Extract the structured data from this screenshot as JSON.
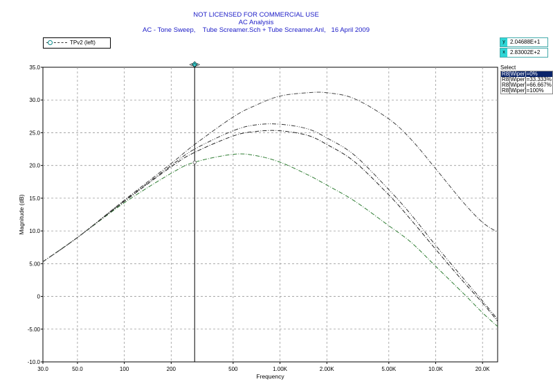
{
  "header": {
    "line1": "NOT LICENSED FOR COMMERCIAL USE",
    "line2": "AC Analysis",
    "line3": "AC - Tone Sweep,    Tube Screamer.Sch + Tube Screamer.Anl,   16 April 2009"
  },
  "legend": {
    "label": "TPv2 (left)"
  },
  "cursor": {
    "y_tag": "y",
    "y_value": "2.04688E+1",
    "x_tag": "x",
    "x_value": "2.83002E+2",
    "marker_label": "<◇>",
    "x_data": 283
  },
  "select_panel": {
    "title": "Select",
    "items": [
      "R8[Wiper]=0%",
      "R8[Wiper]=33.333%",
      "R8[Wiper]=66.667%",
      "R8[Wiper]=100%"
    ],
    "selected_index": 0
  },
  "chart_data": {
    "type": "line",
    "title": "",
    "xlabel": "Frequency",
    "ylabel": "Magnitude  (dB)",
    "x_scale": "log",
    "xlim": [
      30,
      25000
    ],
    "ylim": [
      -10,
      35
    ],
    "grid": true,
    "x_ticks": [
      30,
      50,
      100,
      200,
      500,
      1000,
      2000,
      5000,
      10000,
      20000
    ],
    "x_tick_labels": [
      "30.0",
      "50.0",
      "100",
      "200",
      "500",
      "1.00K",
      "2.00K",
      "5.00K",
      "10.0K",
      "20.0K"
    ],
    "y_ticks": [
      -10,
      -5,
      0,
      5,
      10,
      15,
      20,
      25,
      30,
      35
    ],
    "y_tick_labels": [
      "-10.0",
      "-5.00",
      "0",
      "5.00",
      "10.0",
      "15.0",
      "20.0",
      "25.0",
      "30.0",
      "35.0"
    ],
    "x": [
      30,
      50,
      100,
      200,
      283,
      500,
      700,
      1000,
      1500,
      2000,
      3000,
      5000,
      7000,
      10000,
      15000,
      20000,
      25000
    ],
    "series": [
      {
        "name": "R8[Wiper]=0%",
        "color": "#2e7d32",
        "values": [
          5.3,
          9.0,
          14.3,
          18.8,
          20.5,
          21.7,
          21.5,
          20.5,
          18.6,
          17.0,
          14.6,
          10.8,
          8.2,
          4.6,
          0.5,
          -2.5,
          -4.6
        ]
      },
      {
        "name": "R8[Wiper]=33.333%",
        "color": "#222222",
        "values": [
          5.3,
          9.0,
          14.5,
          19.8,
          22.0,
          24.5,
          25.2,
          25.3,
          24.6,
          23.2,
          20.6,
          15.5,
          11.6,
          7.2,
          2.3,
          -1.0,
          -3.8
        ]
      },
      {
        "name": "R8[Wiper]=66.667%",
        "color": "#333333",
        "values": [
          5.3,
          9.0,
          14.6,
          20.0,
          22.5,
          25.3,
          26.2,
          26.3,
          25.6,
          24.2,
          21.6,
          16.3,
          12.4,
          7.8,
          2.8,
          -0.7,
          -3.5
        ]
      },
      {
        "name": "R8[Wiper]=100%",
        "color": "#444444",
        "values": [
          5.3,
          9.0,
          14.7,
          20.3,
          23.2,
          27.4,
          29.2,
          30.6,
          31.1,
          31.1,
          30.2,
          27.1,
          23.9,
          19.5,
          14.4,
          11.3,
          9.8
        ]
      }
    ]
  }
}
